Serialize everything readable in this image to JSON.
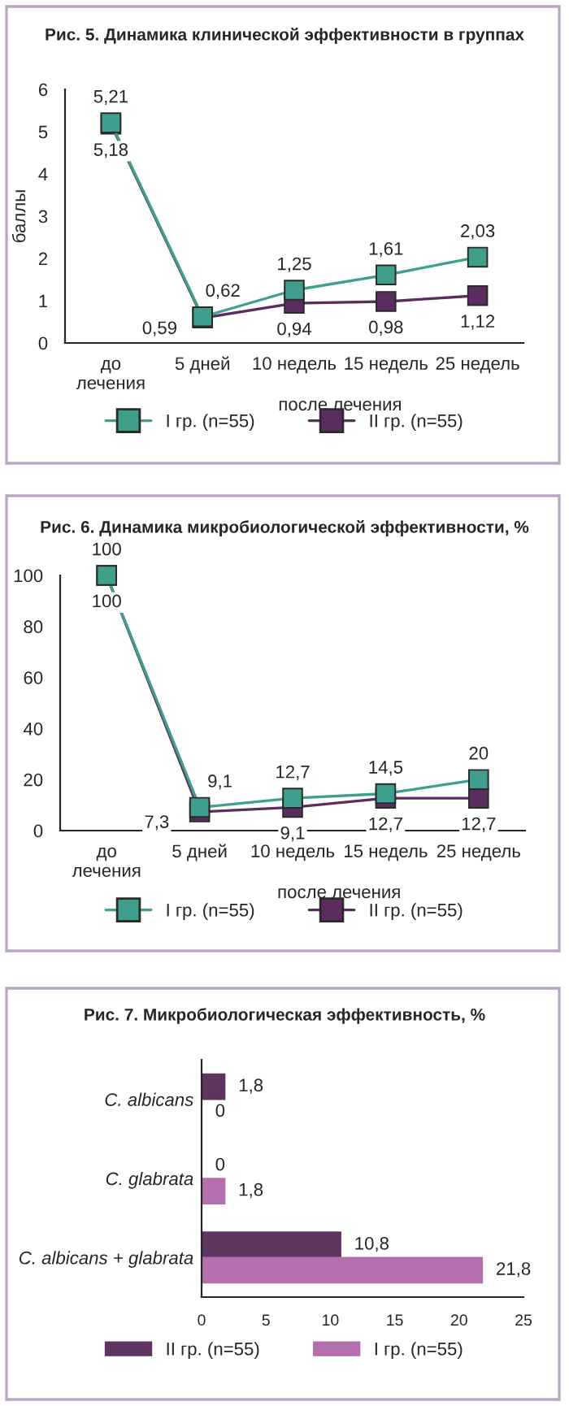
{
  "chart_data": [
    {
      "type": "line",
      "title": "Рис. 5. Динамика клинической эффективности в группах",
      "ylabel": "баллы",
      "xlabel": "после лечения",
      "categories": [
        "до\nлечения",
        "5 дней",
        "10 недель",
        "15 недель",
        "25 недель"
      ],
      "series": [
        {
          "name": "I гр. (n=55)",
          "color": "#3f9e8c",
          "values": [
            5.21,
            0.62,
            1.25,
            1.61,
            2.03
          ],
          "value_labels": [
            "5,21",
            "0,62",
            "1,25",
            "1,61",
            "2,03"
          ]
        },
        {
          "name": "II гр. (n=55)",
          "color": "#5b2d5e",
          "values": [
            5.18,
            0.59,
            0.94,
            0.98,
            1.12
          ],
          "value_labels": [
            "5,18",
            "0,59",
            "0,94",
            "0,98",
            "1,12"
          ]
        }
      ],
      "ylim": [
        0,
        6
      ],
      "yticks": [
        0,
        1,
        2,
        3,
        4,
        5,
        6
      ],
      "marker": "square",
      "legend": "bottom",
      "grid": false
    },
    {
      "type": "line",
      "title": "Рис. 6. Динамика микробиологической эффективности, %",
      "xlabel": "после лечения",
      "categories": [
        "до\nлечения",
        "5 дней",
        "10 недель",
        "15 недель",
        "25 недель"
      ],
      "series": [
        {
          "name": "I гр. (n=55)",
          "color": "#3f9e8c",
          "values": [
            100,
            9.1,
            12.7,
            14.5,
            20
          ],
          "value_labels": [
            "100",
            "9,1",
            "12,7",
            "14,5",
            "20"
          ]
        },
        {
          "name": "II гр. (n=55)",
          "color": "#5b2d5e",
          "values": [
            100,
            7.3,
            9.1,
            12.7,
            12.7
          ],
          "value_labels": [
            "100",
            "7,3",
            "9,1",
            "12,7",
            "12,7"
          ]
        }
      ],
      "ylim": [
        0,
        100
      ],
      "yticks": [
        0,
        20,
        40,
        60,
        80,
        100
      ],
      "marker": "square",
      "legend": "bottom",
      "grid": false
    },
    {
      "type": "bar",
      "orientation": "horizontal",
      "title": "Рис. 7. Микробиологическая эффективность, %",
      "categories": [
        "C. albicans",
        "C. glabrata",
        "C. albicans + glabrata"
      ],
      "series": [
        {
          "name": "II гр. (n=55)",
          "color": "#5e355f",
          "values": [
            1.8,
            0,
            10.8
          ],
          "value_labels": [
            "1,8",
            "0",
            "10,8"
          ]
        },
        {
          "name": "I гр. (n=55)",
          "color": "#b46fae",
          "values": [
            0,
            1.8,
            21.8
          ],
          "value_labels": [
            "0",
            "1,8",
            "21,8"
          ]
        }
      ],
      "xlim": [
        0,
        25
      ],
      "xticks": [
        0,
        5,
        10,
        15,
        20,
        25
      ],
      "legend": "bottom",
      "grid": false
    }
  ]
}
